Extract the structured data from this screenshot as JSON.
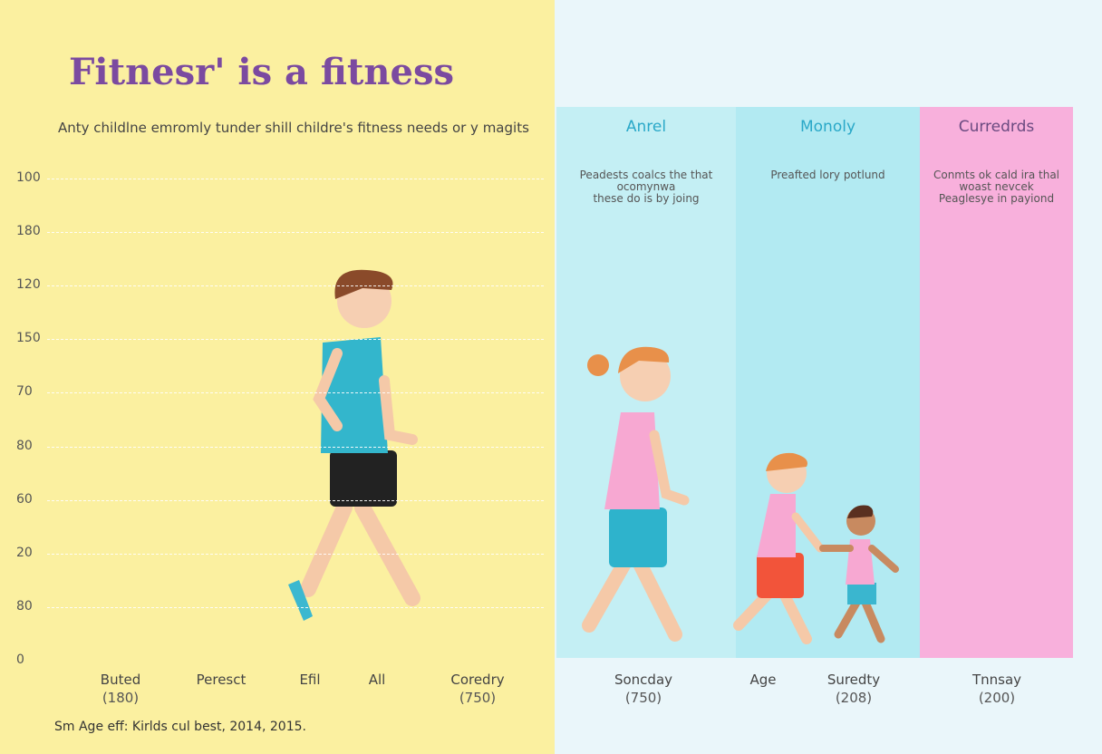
{
  "header": {
    "title": "Fitnesr' is a fitness",
    "subtitle": "Anty childlne emromly tunder shill childre's fitness needs or y magits"
  },
  "axis": {
    "labels": [
      "100",
      "180",
      "120",
      "150",
      "70",
      "80",
      "60",
      "20",
      "80",
      "0"
    ]
  },
  "left_labels": [
    {
      "name": "Buted",
      "note": "(180)"
    },
    {
      "name": "Peresct",
      "note": null
    },
    {
      "name": "Efil",
      "note": null
    },
    {
      "name": "All",
      "note": null
    },
    {
      "name": "Coredry",
      "note": "(750)"
    }
  ],
  "footnote": "Sm Age eff: Kirlds cul best, 2014, 2015.",
  "columns": [
    {
      "title": "Anrel",
      "text": [
        "Peadests coalcs the that",
        "ocomynwa",
        "these do is by joing"
      ]
    },
    {
      "title": "Monoly",
      "text": [
        "Preafted lory potlund"
      ]
    },
    {
      "title": "Curredrds",
      "text": [
        "Conmts ok cald ira thal",
        "woast nevcek",
        "Peaglesye in payiond"
      ]
    }
  ],
  "right_labels": [
    {
      "name": "Soncday",
      "note": "(750)"
    },
    {
      "name": "Age",
      "note": null
    },
    {
      "name": "Suredty",
      "note": "(208)"
    },
    {
      "name": "Tnnsay",
      "note": "(200)"
    }
  ]
}
